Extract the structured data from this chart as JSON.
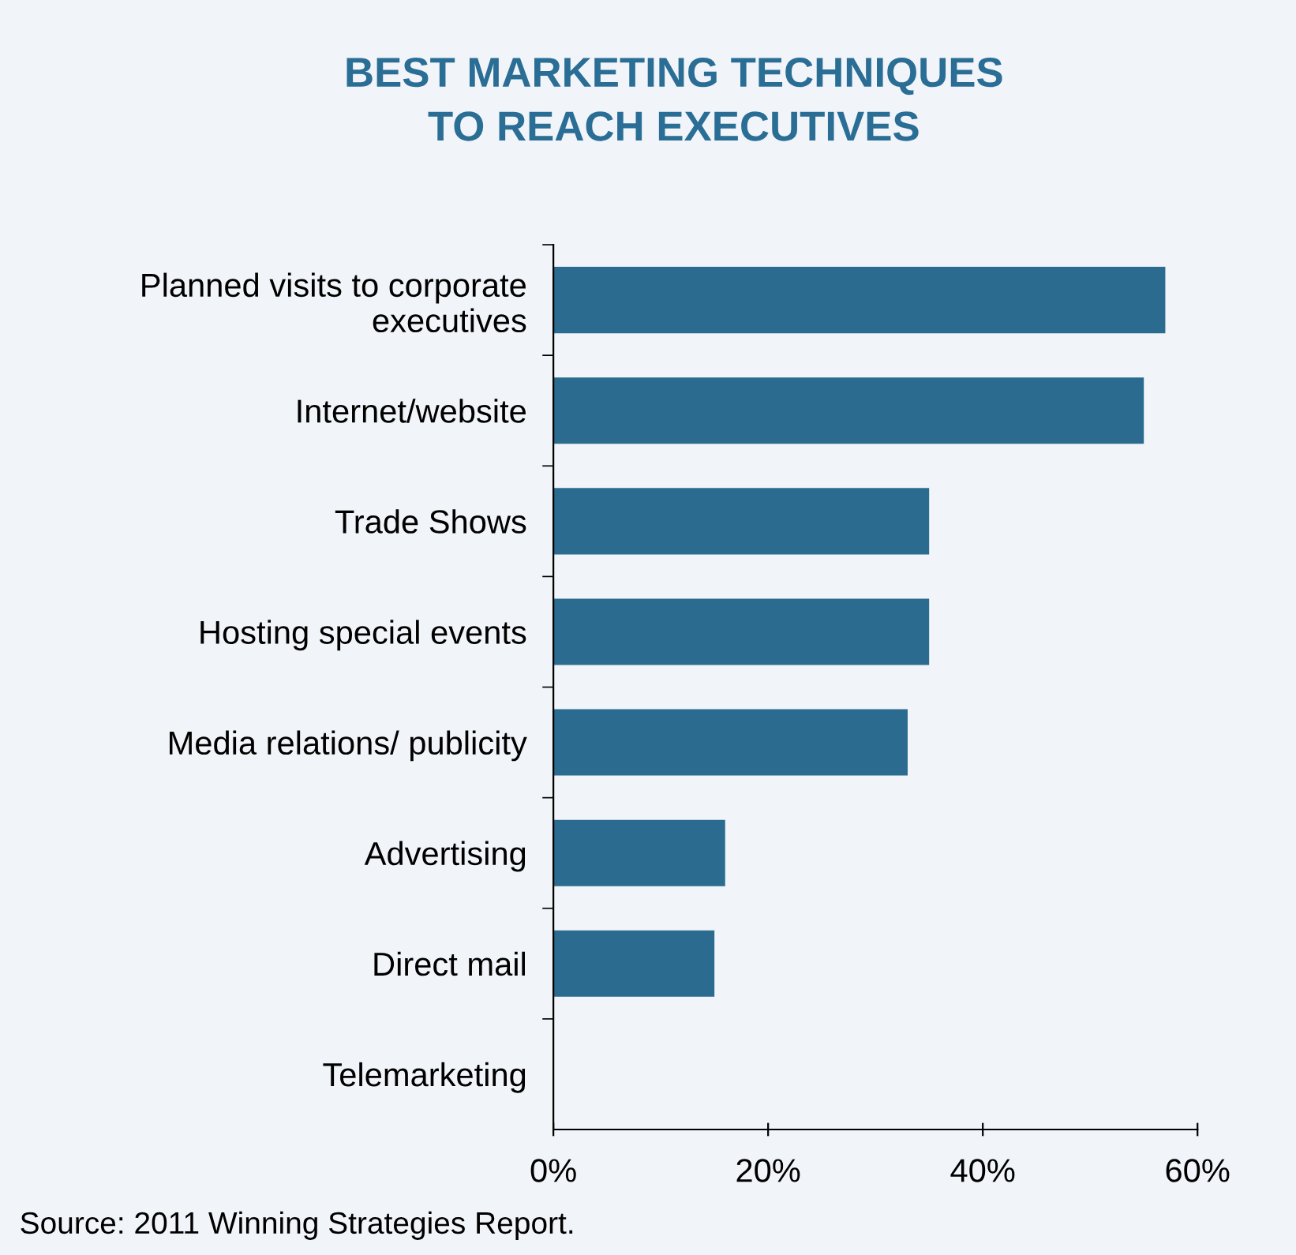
{
  "chart_data": {
    "type": "bar",
    "orientation": "horizontal",
    "title": "BEST MARKETING TECHNIQUES\nTO REACH EXECUTIVES",
    "categories": [
      "Planned visits to corporate\nexecutives",
      "Internet/website",
      "Trade Shows",
      "Hosting special events",
      "Media relations/ publicity",
      "Advertising",
      "Direct mail",
      "Telemarketing"
    ],
    "values": [
      57,
      55,
      35,
      35,
      33,
      16,
      15,
      0
    ],
    "color": "#2b6b8f",
    "xlim": [
      0,
      60
    ],
    "xticks": [
      {
        "value": 0,
        "label": "0%"
      },
      {
        "value": 20,
        "label": "20%"
      },
      {
        "value": 40,
        "label": "40%"
      },
      {
        "value": 60,
        "label": "60%"
      }
    ],
    "grid": false,
    "legend": false,
    "annotations": [
      "Source: 2011 Winning Strategies Report."
    ]
  }
}
